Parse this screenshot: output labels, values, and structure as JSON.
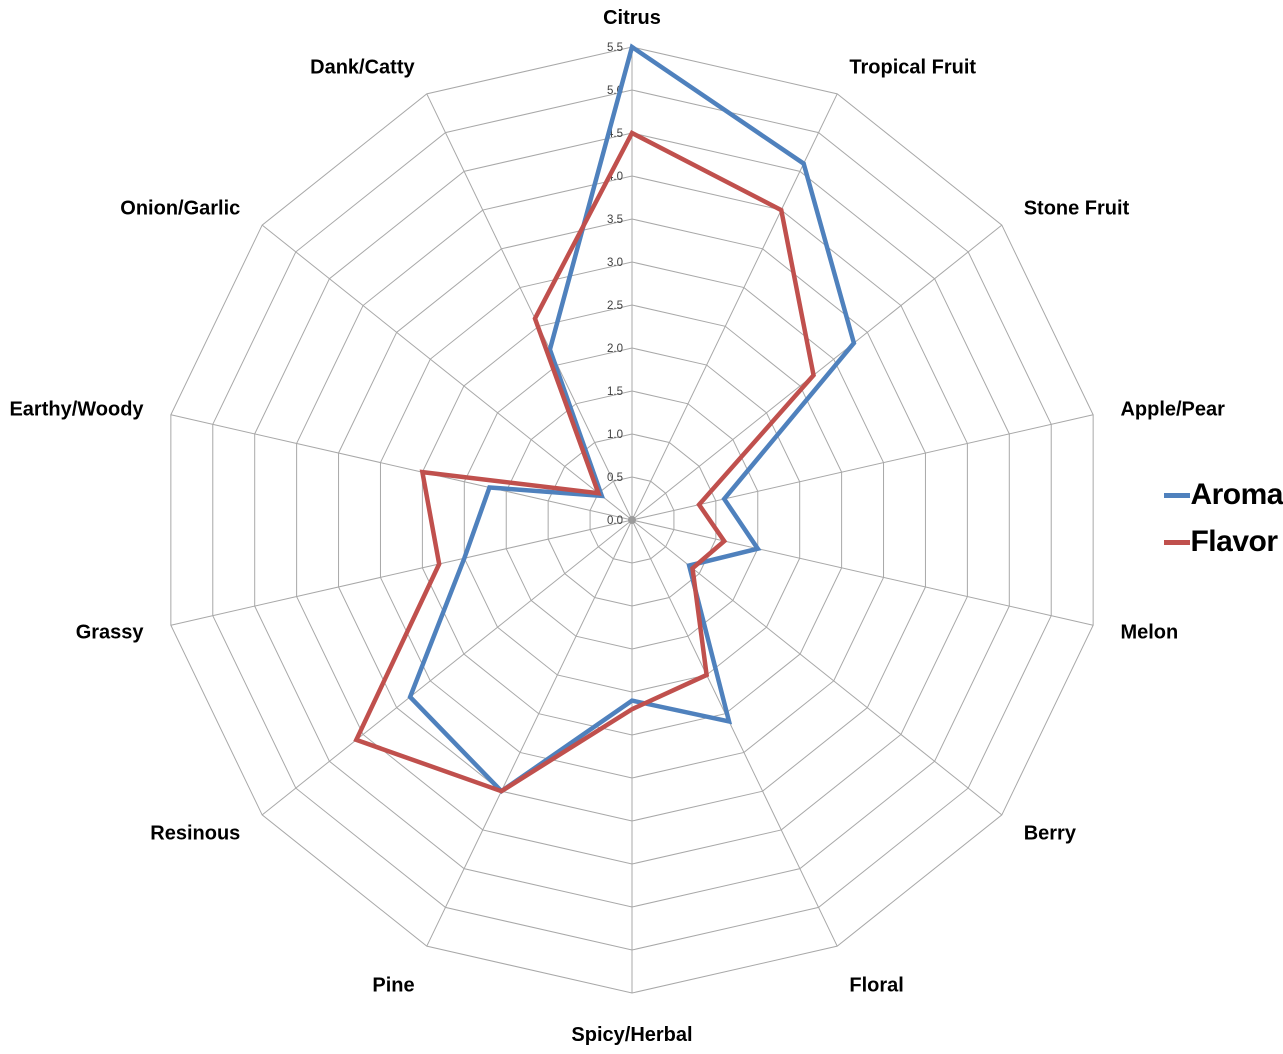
{
  "chart_data": {
    "type": "radar",
    "categories": [
      "Citrus",
      "Tropical Fruit",
      "Stone Fruit",
      "Apple/Pear",
      "Melon",
      "Berry",
      "Floral",
      "Spicy/Herbal",
      "Pine",
      "Resinous",
      "Grassy",
      "Earthy/Woody",
      "Onion/Garlic",
      "Dank/Catty"
    ],
    "series": [
      {
        "name": "Aroma",
        "color": "#4F81BD",
        "values": [
          5.5,
          4.6,
          3.3,
          1.1,
          1.5,
          0.85,
          2.6,
          2.1,
          3.5,
          3.3,
          2.0,
          1.7,
          0.45,
          2.2
        ]
      },
      {
        "name": "Flavor",
        "color": "#C0504D",
        "values": [
          4.5,
          4.0,
          2.7,
          0.8,
          1.1,
          0.9,
          2.0,
          2.2,
          3.5,
          4.1,
          2.3,
          2.5,
          0.5,
          2.6
        ]
      }
    ],
    "axis": {
      "min": 0,
      "max": 5.5,
      "step": 0.5,
      "tick_labels": [
        "0.0",
        "0.5",
        "1.0",
        "1.5",
        "2.0",
        "2.5",
        "3.0",
        "3.5",
        "4.0",
        "4.5",
        "5.0",
        "5.5"
      ]
    },
    "grid": true,
    "legend": {
      "position": "right",
      "entries": [
        "Aroma",
        "Flavor"
      ]
    },
    "colors": {
      "grid": "#A8A8A8",
      "tick_text": "#404040",
      "label_text": "#000000",
      "background": "#FFFFFF",
      "aroma": "#4F81BD",
      "flavor": "#C0504D"
    }
  }
}
